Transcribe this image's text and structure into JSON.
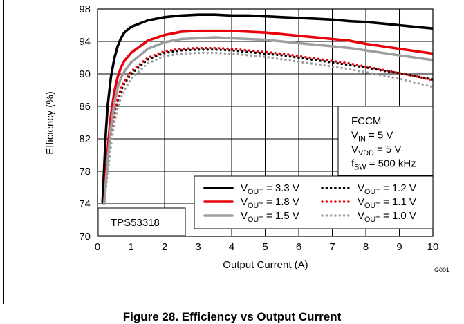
{
  "caption": "Figure 28. Efficiency vs Output Current",
  "chart_data": {
    "type": "line",
    "title": "",
    "xlabel": "Output Current (A)",
    "ylabel": "Efficiency (%)",
    "xlim": [
      0,
      10
    ],
    "ylim": [
      70,
      98
    ],
    "xticks": [
      0,
      1,
      2,
      3,
      4,
      5,
      6,
      7,
      8,
      9,
      10
    ],
    "yticks": [
      70,
      74,
      78,
      82,
      86,
      90,
      94,
      98
    ],
    "grid": true,
    "legend_position": "bottom-right",
    "device_label": "TPS53318",
    "figure_id": "G001",
    "conditions": [
      {
        "main": "FCCM",
        "sub": "",
        "rest": ""
      },
      {
        "main": "V",
        "sub": "IN",
        "rest": " = 5 V"
      },
      {
        "main": "V",
        "sub": "VDD",
        "rest": " = 5 V"
      },
      {
        "main": "f",
        "sub": "SW",
        "rest": " = 500 kHz"
      }
    ],
    "series": [
      {
        "name": "VOUT = 3.3 V",
        "label_main": "V",
        "label_sub": "OUT",
        "label_rest": " = 3.3 V",
        "color": "#000000",
        "style": "solid",
        "x": [
          0.15,
          0.2,
          0.25,
          0.3,
          0.4,
          0.5,
          0.6,
          0.7,
          0.8,
          1,
          1.5,
          2,
          2.5,
          3,
          3.5,
          4,
          4.5,
          5,
          5.5,
          6,
          6.5,
          7,
          7.5,
          8,
          8.5,
          9,
          9.5,
          10
        ],
        "y": [
          74.2,
          78.5,
          82.8,
          86.0,
          89.6,
          91.9,
          93.4,
          94.4,
          95.1,
          95.8,
          96.6,
          97.0,
          97.2,
          97.3,
          97.3,
          97.2,
          97.2,
          97.1,
          97.0,
          96.9,
          96.8,
          96.7,
          96.5,
          96.4,
          96.2,
          96.0,
          95.8,
          95.6
        ]
      },
      {
        "name": "VOUT = 1.8 V",
        "label_main": "V",
        "label_sub": "OUT",
        "label_rest": " = 1.8 V",
        "color": "#e8000b",
        "style": "solid",
        "x": [
          0.2,
          0.25,
          0.3,
          0.35,
          0.4,
          0.5,
          0.6,
          0.7,
          0.8,
          1,
          1.5,
          2,
          2.5,
          3,
          3.5,
          4,
          4.5,
          5,
          5.5,
          6,
          6.5,
          7,
          7.5,
          8,
          8.5,
          9,
          9.5,
          10
        ],
        "y": [
          74.0,
          77.5,
          80.5,
          82.9,
          84.9,
          87.8,
          89.6,
          90.8,
          91.6,
          92.6,
          94.1,
          94.8,
          95.2,
          95.3,
          95.3,
          95.3,
          95.2,
          95.1,
          94.9,
          94.7,
          94.5,
          94.3,
          94.1,
          93.7,
          93.4,
          93.1,
          92.8,
          92.5
        ]
      },
      {
        "name": "VOUT = 1.5 V",
        "label_main": "V",
        "label_sub": "OUT",
        "label_rest": " = 1.5 V",
        "color": "#9e9e9e",
        "style": "solid",
        "x": [
          0.2,
          0.25,
          0.3,
          0.35,
          0.4,
          0.5,
          0.6,
          0.7,
          0.8,
          1,
          1.5,
          2,
          2.5,
          3,
          3.5,
          4,
          4.5,
          5,
          5.5,
          6,
          6.5,
          7,
          7.5,
          8,
          8.5,
          9,
          9.5,
          10
        ],
        "y": [
          74.0,
          76.6,
          79.2,
          81.4,
          83.4,
          86.4,
          88.3,
          89.5,
          90.3,
          91.4,
          93.1,
          93.9,
          94.3,
          94.4,
          94.5,
          94.4,
          94.3,
          94.2,
          94.0,
          93.8,
          93.6,
          93.4,
          93.2,
          92.9,
          92.6,
          92.3,
          92.0,
          91.7
        ]
      },
      {
        "name": "VOUT = 1.2 V",
        "label_main": "V",
        "label_sub": "OUT",
        "label_rest": " = 1.2 V",
        "color": "#000000",
        "style": "dotted",
        "x": [
          0.2,
          0.25,
          0.3,
          0.35,
          0.4,
          0.5,
          0.6,
          0.7,
          0.8,
          1,
          1.5,
          2,
          2.5,
          3,
          3.5,
          4,
          4.5,
          5,
          5.5,
          6,
          6.5,
          7,
          7.5,
          8,
          8.5,
          9,
          9.5,
          10
        ],
        "y": [
          74.0,
          76.2,
          78.4,
          80.4,
          82.2,
          84.9,
          86.7,
          87.9,
          88.8,
          90.0,
          91.8,
          92.6,
          92.9,
          93.0,
          93.0,
          92.9,
          92.7,
          92.5,
          92.3,
          92.0,
          91.7,
          91.4,
          91.1,
          90.8,
          90.4,
          90.1,
          89.7,
          89.3
        ]
      },
      {
        "name": "VOUT = 1.1 V",
        "label_main": "V",
        "label_sub": "OUT",
        "label_rest": " = 1.1 V",
        "color": "#e8000b",
        "style": "dotted",
        "x": [
          0.2,
          0.25,
          0.3,
          0.35,
          0.4,
          0.5,
          0.6,
          0.7,
          0.8,
          1,
          1.5,
          2,
          2.5,
          3,
          3.5,
          4,
          4.5,
          5,
          5.5,
          6,
          6.5,
          7,
          7.5,
          8,
          8.5,
          9,
          9.5,
          10
        ],
        "y": [
          74.0,
          76.3,
          78.6,
          80.6,
          82.4,
          85.1,
          86.9,
          88.2,
          89.1,
          90.3,
          92.0,
          92.8,
          93.1,
          93.2,
          93.2,
          93.1,
          92.9,
          92.7,
          92.5,
          92.2,
          91.9,
          91.6,
          91.3,
          90.9,
          90.5,
          90.1,
          89.7,
          89.2
        ]
      },
      {
        "name": "VOUT = 1.0 V",
        "label_main": "V",
        "label_sub": "OUT",
        "label_rest": " = 1.0 V",
        "color": "#9e9e9e",
        "style": "dotted",
        "x": [
          0.2,
          0.25,
          0.3,
          0.35,
          0.4,
          0.5,
          0.6,
          0.7,
          0.8,
          1,
          1.5,
          2,
          2.5,
          3,
          3.5,
          4,
          4.5,
          5,
          5.5,
          6,
          6.5,
          7,
          7.5,
          8,
          8.5,
          9,
          9.5,
          10
        ],
        "y": [
          74.0,
          75.8,
          77.7,
          79.5,
          81.2,
          83.9,
          85.8,
          87.1,
          88.0,
          89.4,
          91.3,
          92.2,
          92.5,
          92.6,
          92.6,
          92.5,
          92.3,
          92.1,
          91.8,
          91.5,
          91.2,
          90.9,
          90.6,
          90.2,
          89.8,
          89.4,
          88.9,
          88.4
        ]
      }
    ]
  }
}
